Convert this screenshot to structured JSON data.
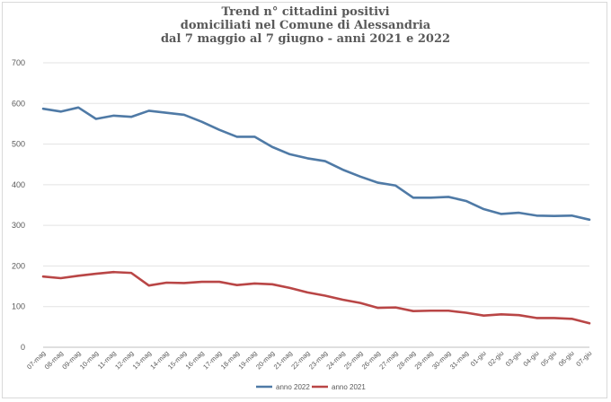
{
  "chart_data": {
    "type": "line",
    "title_lines": [
      "Trend n° cittadini positivi",
      "domiciliati nel Comune di Alessandria",
      "dal 7 maggio al 7 giugno - anni 2021 e 2022"
    ],
    "xlabel": "",
    "ylabel": "",
    "ylim": [
      0,
      700
    ],
    "yticks": [
      0,
      100,
      200,
      300,
      400,
      500,
      600,
      700
    ],
    "grid": true,
    "legend_position": "bottom",
    "x": [
      "07-mag",
      "08-mag",
      "09-mag",
      "10-mag",
      "11-mag",
      "12-mag",
      "13-mag",
      "14-mag",
      "15-mag",
      "16-mag",
      "17-mag",
      "18-mag",
      "19-mag",
      "20-mag",
      "21-mag",
      "22-mag",
      "23-mag",
      "24-mag",
      "25-mag",
      "26-mag",
      "27-mag",
      "28-mag",
      "29-mag",
      "30-mag",
      "31-mag",
      "01-giu",
      "02-giu",
      "03-giu",
      "04-giu",
      "05-giu",
      "06-giu",
      "07-giu"
    ],
    "series": [
      {
        "name": "anno 2022",
        "color": "#4f7aa6",
        "values": [
          587,
          580,
          590,
          562,
          570,
          567,
          582,
          577,
          572,
          555,
          535,
          518,
          518,
          493,
          475,
          465,
          458,
          437,
          420,
          405,
          398,
          368,
          368,
          370,
          360,
          340,
          328,
          331,
          324,
          323,
          324,
          314
        ]
      },
      {
        "name": "anno 2021",
        "color": "#b94646",
        "values": [
          174,
          170,
          176,
          181,
          185,
          183,
          152,
          159,
          158,
          161,
          161,
          153,
          157,
          155,
          146,
          135,
          127,
          117,
          109,
          97,
          98,
          89,
          90,
          90,
          85,
          78,
          81,
          79,
          72,
          72,
          70,
          59
        ]
      }
    ]
  }
}
